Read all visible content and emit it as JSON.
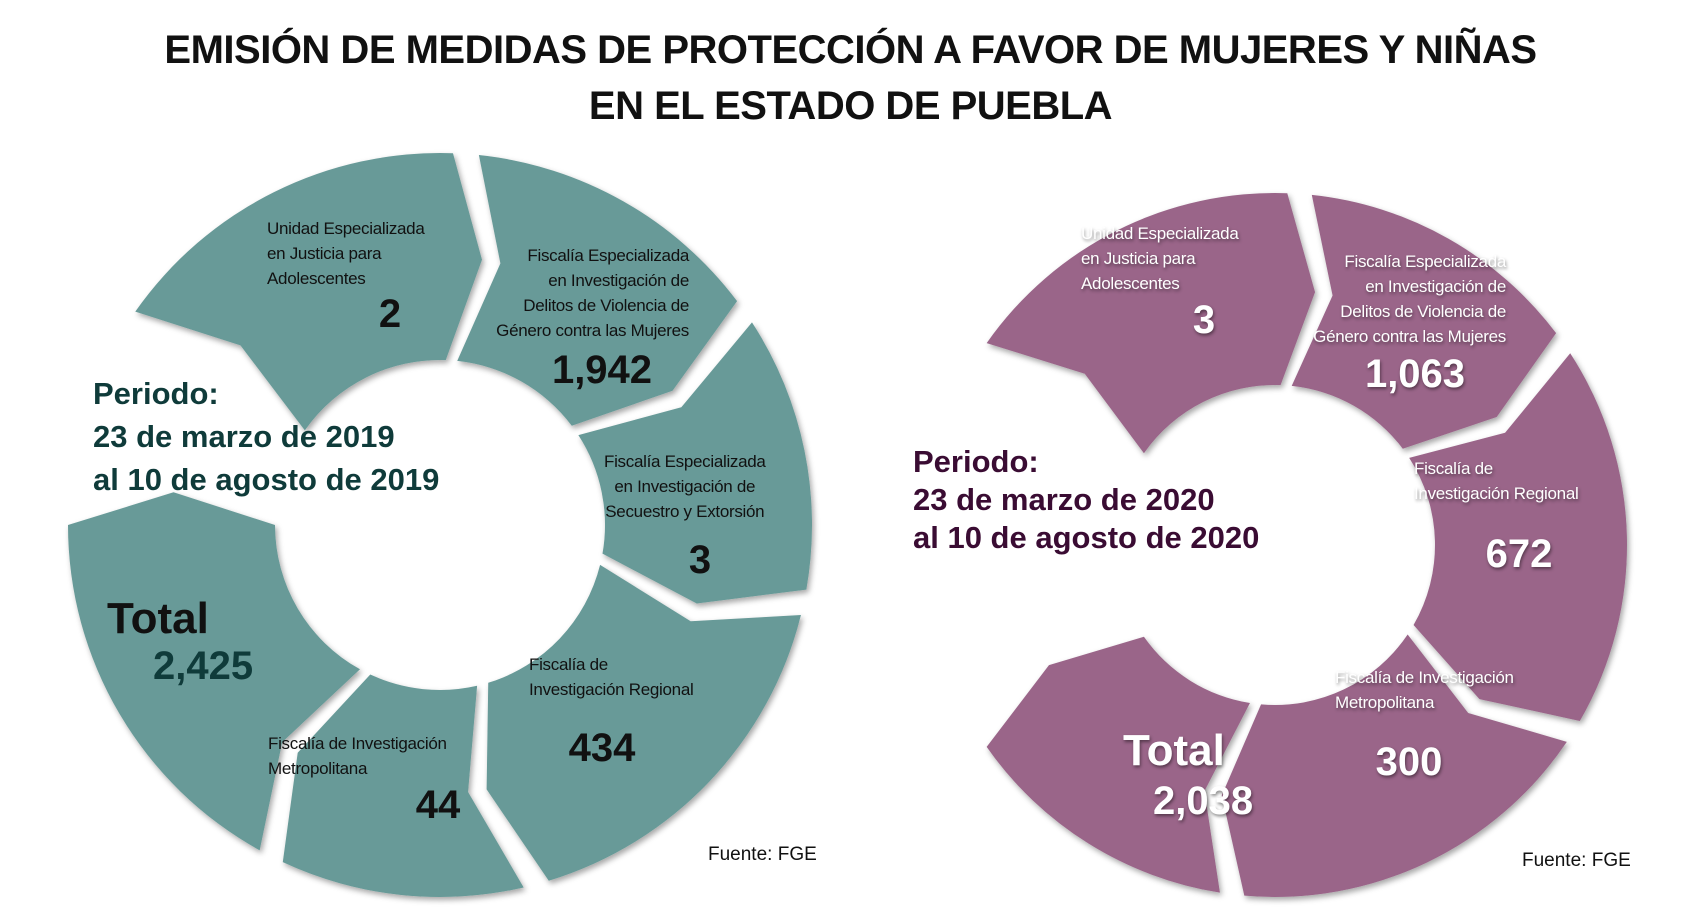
{
  "title": {
    "line1": "EMISIÓN DE MEDIDAS DE PROTECCIÓN A FAVOR DE MUJERES Y NIÑAS",
    "line2": "EN EL ESTADO DE PUEBLA"
  },
  "colors": {
    "period_2019": "#679a98",
    "period_2019_text": "#0f3b3a",
    "period_2020": "#9a6589",
    "period_2020_text": "#3a0c33"
  },
  "left": {
    "period": {
      "label": "Periodo:",
      "line1": "23 de marzo de 2019",
      "line2": "al 10 de agosto de 2019"
    },
    "total": {
      "label": "Total",
      "value": "2,425"
    },
    "segments": [
      {
        "lines": [
          "Unidad Especializada",
          "en Justicia para",
          "Adolescentes"
        ],
        "value": "2"
      },
      {
        "lines": [
          "Fiscalía Especializada",
          "en Investigación de",
          "Delitos de Violencia de",
          "Género contra las Mujeres"
        ],
        "value": "1,942"
      },
      {
        "lines": [
          "Fiscalía Especializada",
          "en Investigación de",
          "Secuestro y Extorsión"
        ],
        "value": "3"
      },
      {
        "lines": [
          "Fiscalía de",
          "Investigación Regional"
        ],
        "value": "434"
      },
      {
        "lines": [
          "Fiscalía de Investigación",
          "Metropolitana"
        ],
        "value": "44"
      }
    ],
    "source": "Fuente: FGE"
  },
  "right": {
    "period": {
      "label": "Periodo:",
      "line1": "23 de marzo de 2020",
      "line2": "al 10 de agosto de 2020"
    },
    "total": {
      "label": "Total",
      "value": "2,038"
    },
    "segments": [
      {
        "lines": [
          "Unidad Especializada",
          "en Justicia para",
          "Adolescentes"
        ],
        "value": "3"
      },
      {
        "lines": [
          "Fiscalía Especializada",
          "en Investigación de",
          "Delitos de Violencia de",
          "Género contra las Mujeres"
        ],
        "value": "1,063"
      },
      {
        "lines": [
          "Fiscalía de",
          "Investigación Regional"
        ],
        "value": "672"
      },
      {
        "lines": [
          "Fiscalía de Investigación",
          "Metropolitana"
        ],
        "value": "300"
      }
    ],
    "source": "Fuente: FGE"
  }
}
